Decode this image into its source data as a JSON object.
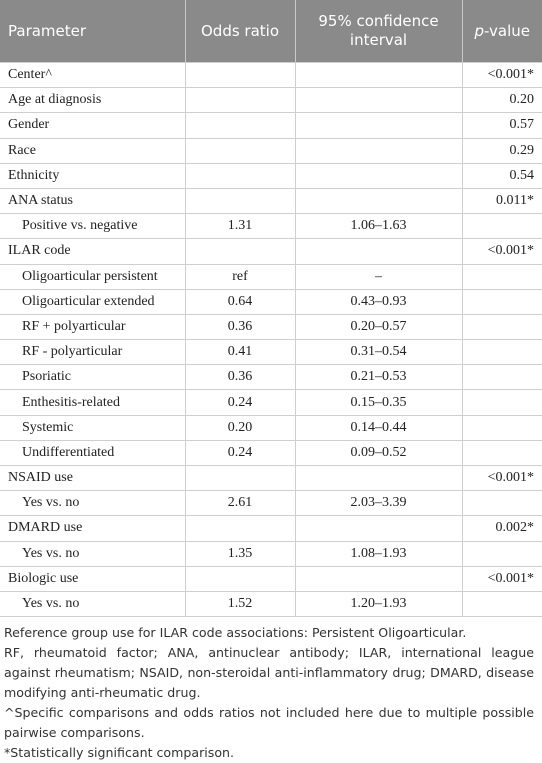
{
  "table": {
    "header": [
      "Parameter",
      "Odds ratio",
      "95% confidence interval",
      [
        "p",
        "-value"
      ]
    ],
    "groups": [
      {
        "row": [
          "Center^",
          null,
          null,
          "<0.001*"
        ]
      },
      {
        "row": [
          "Age at diagnosis",
          null,
          null,
          "0.20"
        ]
      },
      {
        "row": [
          "Gender",
          null,
          null,
          "0.57"
        ]
      },
      {
        "row": [
          "Race",
          null,
          null,
          "0.29"
        ]
      },
      {
        "row": [
          "Ethnicity",
          null,
          null,
          "0.54"
        ]
      },
      {
        "row": [
          "ANA status",
          null,
          null,
          "0.011*"
        ],
        "sub_rows": [
          [
            "Positive vs. negative",
            "1.31",
            "1.06–1.63",
            null
          ]
        ]
      },
      {
        "row": [
          "ILAR code",
          null,
          null,
          "<0.001*"
        ],
        "sub_rows": [
          [
            "Oligoarticular persistent",
            "ref",
            "–",
            null
          ],
          [
            "Oligoarticular extended",
            "0.64",
            "0.43–0.93",
            null
          ],
          [
            "RF + polyarticular",
            "0.36",
            "0.20–0.57",
            null
          ],
          [
            "RF - polyarticular",
            "0.41",
            "0.31–0.54",
            null
          ],
          [
            "Psoriatic",
            "0.36",
            "0.21–0.53",
            null
          ],
          [
            "Enthesitis-related",
            "0.24",
            "0.15–0.35",
            null
          ],
          [
            "Systemic",
            "0.20",
            "0.14–0.44",
            null
          ],
          [
            "Undifferentiated",
            "0.24",
            "0.09–0.52",
            null
          ]
        ]
      },
      {
        "row": [
          "NSAID use",
          null,
          null,
          "<0.001*"
        ],
        "sub_rows": [
          [
            "Yes vs. no",
            "2.61",
            "2.03–3.39",
            null
          ]
        ]
      },
      {
        "row": [
          "DMARD use",
          null,
          null,
          "0.002*"
        ],
        "sub_rows": [
          [
            "Yes vs. no",
            "1.35",
            "1.08–1.93",
            null
          ]
        ]
      },
      {
        "row": [
          "Biologic use",
          null,
          null,
          "<0.001*"
        ],
        "sub_rows": [
          [
            "Yes vs. no",
            "1.52",
            "1.20–1.93",
            null
          ]
        ]
      }
    ]
  },
  "footnotes": [
    "Reference group use for ILAR code associations: Persistent Oligoarticular.",
    "RF, rheumatoid factor; ANA, antinuclear antibody; ILAR, international league against rheumatism; NSAID, non-steroidal anti-inflammatory drug; DMARD, disease modifying anti-rheumatic drug.",
    "^Specific comparisons and odds ratios not included here due to multiple possible pairwise comparisons.",
    "*Statistically significant comparison."
  ]
}
